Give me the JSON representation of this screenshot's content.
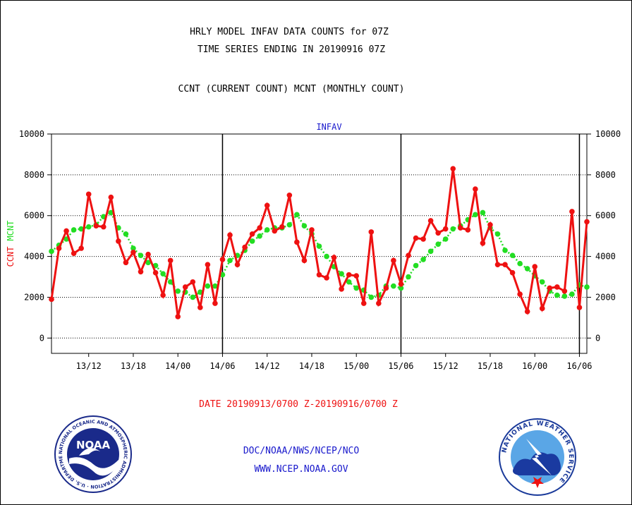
{
  "header": {
    "title_line1": "HRLY MODEL INFAV DATA COUNTS for 07Z",
    "title_line2": "TIME SERIES ENDING IN 20190916 07Z",
    "subtitle": "CCNT (CURRENT COUNT) MCNT (MONTHLY COUNT)"
  },
  "footer": {
    "date_range": "DATE 20190913/0700 Z-20190916/0700 Z",
    "org_path": "DOC/NOAA/NWS/NCEP/NCO",
    "website": "WWW.NCEP.NOAA.GOV"
  },
  "logos": {
    "noaa": {
      "center_text": "NOAA",
      "ring_text": "NATIONAL OCEANIC AND ATMOSPHERIC ADMINISTRATION · U.S. DEPARTMENT OF COMMERCE ·"
    },
    "nws": {
      "ring_text": "NATIONAL WEATHER SERVICE"
    }
  },
  "colors": {
    "ccnt": "#ee1111",
    "mcnt": "#22dd22",
    "label_blue": "#1818cc",
    "axis": "#000000"
  },
  "chart_data": {
    "type": "line",
    "plot_label": "INFAV",
    "ylim": [
      -750,
      10000
    ],
    "y_ticks": [
      0,
      2000,
      4000,
      6000,
      8000,
      10000
    ],
    "y_tick_labels": [
      "0",
      "2000",
      "4000",
      "6000",
      "8000",
      "10000"
    ],
    "ylabel_left": {
      "ccnt": "CCNT",
      "mcnt": "MCNT"
    },
    "x_start": "20190913/0700",
    "x_end": "20190916/0700",
    "x_tick_labels": [
      "13/12",
      "13/18",
      "14/00",
      "14/06",
      "14/12",
      "14/18",
      "15/00",
      "15/06",
      "15/12",
      "15/18",
      "16/00",
      "16/06"
    ],
    "x_tick_hours": [
      5,
      11,
      17,
      23,
      29,
      35,
      41,
      47,
      53,
      59,
      65,
      71
    ],
    "day_boundaries_hours": [
      23,
      47,
      71
    ],
    "grid": "horizontal dotted",
    "series": [
      {
        "name": "CCNT",
        "values": [
          1900,
          4400,
          5250,
          4150,
          4400,
          7050,
          5500,
          5450,
          6900,
          4750,
          3700,
          4200,
          3250,
          4100,
          3200,
          2100,
          3800,
          1050,
          2500,
          2750,
          1500,
          3600,
          1700,
          3850,
          5050,
          3600,
          4450,
          5100,
          5400,
          6500,
          5250,
          5450,
          7000,
          4700,
          3800,
          5300,
          3100,
          2950,
          3950,
          2400,
          3100,
          3050,
          1700,
          5200,
          1700,
          2450,
          3800,
          2650,
          4050,
          4900,
          4850,
          5750,
          5150,
          5350,
          8300,
          5400,
          5300,
          7300,
          4650,
          5550,
          3600,
          3600,
          3200,
          2150,
          1300,
          3500,
          1450,
          2450,
          2500,
          2300,
          6200,
          1500,
          5700
        ]
      },
      {
        "name": "MCNT",
        "values": [
          4250,
          4550,
          4850,
          5300,
          5350,
          5450,
          5550,
          5950,
          6150,
          5400,
          5100,
          4400,
          4050,
          3700,
          3550,
          3150,
          2750,
          2300,
          2250,
          2000,
          2250,
          2550,
          2550,
          3100,
          3800,
          4050,
          4300,
          4750,
          5000,
          5300,
          5400,
          5400,
          5550,
          6050,
          5500,
          5100,
          4500,
          4000,
          3500,
          3150,
          2750,
          2450,
          2350,
          2000,
          2100,
          2550,
          2550,
          2450,
          3000,
          3550,
          3850,
          4250,
          4600,
          4850,
          5350,
          5500,
          5800,
          6050,
          6150,
          5400,
          5100,
          4300,
          4050,
          3650,
          3400,
          3050,
          2750,
          2300,
          2100,
          2050,
          2150,
          2600,
          2500
        ]
      }
    ]
  }
}
